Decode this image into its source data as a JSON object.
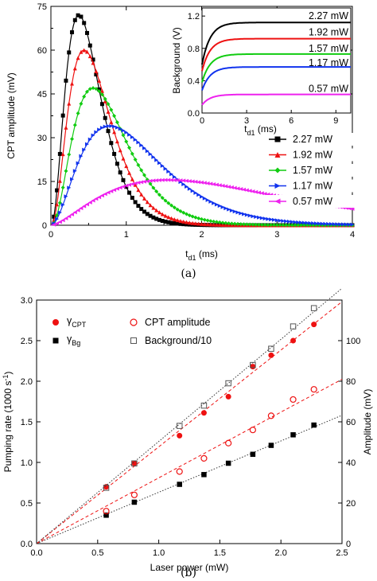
{
  "chart_data": [
    {
      "type": "line",
      "panel": "(a)",
      "xlabel": "t",
      "xlabel_sub": "d1",
      "xlabel_unit": " (ms)",
      "ylabel": "CPT amplitude (mV)",
      "xlim": [
        0,
        4
      ],
      "ylim": [
        0,
        75
      ],
      "xticks": [
        "0",
        "1",
        "2",
        "3",
        "4"
      ],
      "yticks": [
        "0",
        "15",
        "30",
        "45",
        "60",
        "75"
      ],
      "legend_position": "right",
      "series": [
        {
          "name": "2.27 mW",
          "color": "#000000",
          "marker": "square",
          "peak_t": 0.37,
          "peak": 72,
          "width": 0.95
        },
        {
          "name": "1.92 mW",
          "color": "#ee1111",
          "marker": "triangle-up",
          "peak_t": 0.44,
          "peak": 60,
          "width": 1.05
        },
        {
          "name": "1.57 mW",
          "color": "#11cc11",
          "marker": "diamond",
          "peak_t": 0.56,
          "peak": 47,
          "width": 1.2
        },
        {
          "name": "1.17 mW",
          "color": "#1133ee",
          "marker": "triangle-right",
          "peak_t": 0.78,
          "peak": 34,
          "width": 1.5
        },
        {
          "name": "0.57 mW",
          "color": "#ee22ee",
          "marker": "triangle-left",
          "peak_t": 1.55,
          "peak": 15.5,
          "width": 2.8
        }
      ],
      "inset": {
        "xlabel": "t",
        "xlabel_sub": "d1",
        "xlabel_unit": " (ms)",
        "ylabel": "Background (V)",
        "xlim": [
          0,
          10
        ],
        "ylim": [
          0,
          1.3
        ],
        "xticks": [
          "0",
          "3",
          "6",
          "9"
        ],
        "yticks": [
          "0.0",
          "0.4",
          "0.8",
          "1.2"
        ],
        "series": [
          {
            "name": "2.27 mW",
            "color": "#000000",
            "start": 0.6,
            "plateau": 1.12
          },
          {
            "name": "1.92 mW",
            "color": "#ee1111",
            "start": 0.52,
            "plateau": 0.92
          },
          {
            "name": "1.57 mW",
            "color": "#11cc11",
            "start": 0.38,
            "plateau": 0.73
          },
          {
            "name": "1.17 mW",
            "color": "#1133ee",
            "start": 0.28,
            "plateau": 0.57
          },
          {
            "name": "0.57 mW",
            "color": "#ee22ee",
            "start": 0.1,
            "plateau": 0.23
          }
        ]
      }
    },
    {
      "type": "scatter",
      "panel": "(b)",
      "xlabel": "Laser power  (mW)",
      "ylabel": "Pumping rate  (1000 s",
      "ylabel_sup": "-1",
      "ylabel_close": ")",
      "y2label": "Amplitude  (mV)",
      "xlim": [
        0,
        2.5
      ],
      "ylim": [
        0,
        3.0
      ],
      "y2lim": [
        0,
        120
      ],
      "xticks": [
        "0.0",
        "0.5",
        "1.0",
        "1.5",
        "2.0",
        "2.5"
      ],
      "yticks": [
        "0.0",
        "0.5",
        "1.0",
        "1.5",
        "2.0",
        "2.5",
        "3.0"
      ],
      "y2ticks": [
        "0",
        "20",
        "40",
        "60",
        "80",
        "100"
      ],
      "x": [
        0.57,
        0.8,
        1.17,
        1.37,
        1.57,
        1.77,
        1.92,
        2.1,
        2.27
      ],
      "series": [
        {
          "name": "γ",
          "name_sub": "CPT",
          "axis": "left",
          "marker": "filled-circle",
          "color": "#ee1111",
          "values": [
            0.7,
            0.99,
            1.33,
            1.61,
            1.81,
            2.18,
            2.32,
            2.5,
            2.7
          ],
          "fit": "dashed"
        },
        {
          "name": "γ",
          "name_sub": "Bg",
          "axis": "left",
          "marker": "filled-square",
          "color": "#000000",
          "values": [
            0.35,
            0.51,
            0.73,
            0.85,
            0.99,
            1.1,
            1.21,
            1.34,
            1.46
          ],
          "fit": "dotted"
        },
        {
          "name": "CPT amplitude",
          "axis": "right",
          "marker": "open-circle",
          "color": "#ee1111",
          "values": [
            16,
            24,
            35.5,
            42,
            49.5,
            56,
            63,
            71,
            76
          ],
          "fit": "dashed"
        },
        {
          "name": "Background/10",
          "axis": "right",
          "marker": "open-square",
          "color": "#555555",
          "values": [
            27.5,
            39.5,
            58,
            68,
            79,
            88,
            96,
            107,
            116
          ],
          "fit": "dotted"
        }
      ]
    }
  ]
}
